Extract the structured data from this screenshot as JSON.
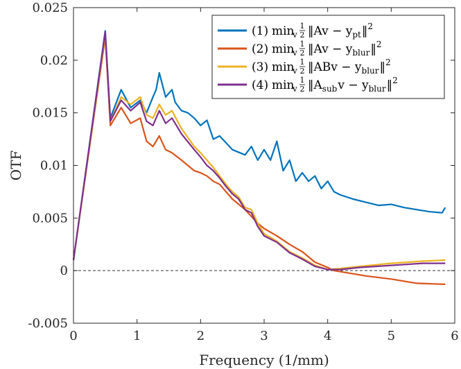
{
  "chart_data": {
    "type": "line",
    "xlabel": "Frequency (1/mm)",
    "ylabel": "OTF",
    "xlim": [
      0,
      6
    ],
    "ylim": [
      -0.005,
      0.025
    ],
    "x_ticks": [
      0,
      1,
      2,
      3,
      4,
      5,
      6
    ],
    "y_ticks": [
      -0.005,
      0,
      0.005,
      0.01,
      0.015,
      0.02,
      0.025
    ],
    "x_tick_labels": [
      "0",
      "1",
      "2",
      "3",
      "4",
      "5",
      "6"
    ],
    "y_tick_labels": [
      "-0.005",
      "0",
      "0.005",
      "0.01",
      "0.015",
      "0.02",
      "0.025"
    ],
    "reference_line": {
      "y": 0,
      "style": "dashed"
    },
    "grid": false,
    "legend_position": "top-right",
    "legend": [
      {
        "number": "(1)",
        "min": "min",
        "min_sub": "v",
        "half_num": "1",
        "half_den": "2",
        "norm_open": "‖Av − y",
        "y_sub": "pt",
        "norm_close": "‖",
        "power": "2"
      },
      {
        "number": "(2)",
        "min": "min",
        "min_sub": "v",
        "half_num": "1",
        "half_den": "2",
        "norm_open": "‖Av − y",
        "y_sub": "blur",
        "norm_close": "‖",
        "power": "2"
      },
      {
        "number": "(3)",
        "min": "min",
        "min_sub": "v",
        "half_num": "1",
        "half_den": "2",
        "norm_open": "‖ABv − y",
        "y_sub": "blur",
        "norm_close": "‖",
        "power": "2"
      },
      {
        "number": "(4)",
        "min": "min",
        "min_sub": "v",
        "half_num": "1",
        "half_den": "2",
        "norm_open": "‖A",
        "a_sub": "sub",
        "norm_mid": "v − y",
        "y_sub": "blur",
        "norm_close": "‖",
        "power": "2"
      }
    ],
    "series": [
      {
        "color": "#0072bd",
        "x": [
          0,
          0.5,
          0.58,
          0.75,
          0.9,
          1.05,
          1.15,
          1.25,
          1.3,
          1.35,
          1.45,
          1.55,
          1.6,
          1.7,
          1.8,
          1.9,
          2.0,
          2.1,
          2.2,
          2.3,
          2.5,
          2.7,
          2.8,
          2.9,
          3.0,
          3.1,
          3.2,
          3.3,
          3.4,
          3.5,
          3.6,
          3.7,
          3.8,
          3.9,
          4.0,
          4.1,
          4.2,
          4.4,
          4.6,
          4.8,
          5.0,
          5.2,
          5.4,
          5.6,
          5.8,
          5.85
        ],
        "y": [
          0.001,
          0.0228,
          0.0145,
          0.0172,
          0.0155,
          0.0162,
          0.015,
          0.0165,
          0.0172,
          0.0188,
          0.0165,
          0.0172,
          0.016,
          0.0152,
          0.015,
          0.0145,
          0.0138,
          0.0143,
          0.0125,
          0.0128,
          0.0115,
          0.011,
          0.0118,
          0.0105,
          0.0115,
          0.0105,
          0.0123,
          0.0095,
          0.0105,
          0.0085,
          0.0093,
          0.0085,
          0.009,
          0.0078,
          0.0085,
          0.0075,
          0.0072,
          0.0068,
          0.0065,
          0.0062,
          0.0063,
          0.006,
          0.0058,
          0.0056,
          0.0055,
          0.006
        ]
      },
      {
        "color": "#d95319",
        "x": [
          0,
          0.5,
          0.58,
          0.75,
          0.9,
          1.05,
          1.15,
          1.25,
          1.35,
          1.45,
          1.55,
          1.7,
          1.9,
          2.0,
          2.1,
          2.2,
          2.3,
          2.5,
          2.7,
          2.9,
          3.0,
          3.2,
          3.4,
          3.6,
          3.8,
          4.0,
          4.1,
          4.3,
          4.6,
          5.0,
          5.4,
          5.85
        ],
        "y": [
          0.001,
          0.0222,
          0.0138,
          0.0155,
          0.014,
          0.0145,
          0.0123,
          0.0118,
          0.0128,
          0.0115,
          0.0112,
          0.0105,
          0.0095,
          0.0093,
          0.009,
          0.0085,
          0.0082,
          0.0068,
          0.0058,
          0.0045,
          0.004,
          0.0033,
          0.0025,
          0.0018,
          0.0008,
          0.0003,
          0.0,
          -0.0002,
          -0.0005,
          -0.0008,
          -0.0012,
          -0.0013
        ]
      },
      {
        "color": "#edb120",
        "x": [
          0,
          0.5,
          0.58,
          0.75,
          0.9,
          1.05,
          1.15,
          1.25,
          1.35,
          1.45,
          1.55,
          1.7,
          1.9,
          2.0,
          2.1,
          2.2,
          2.3,
          2.4,
          2.5,
          2.6,
          2.7,
          2.8,
          2.9,
          3.0,
          3.2,
          3.4,
          3.6,
          3.8,
          4.0,
          4.2,
          4.5,
          5.0,
          5.5,
          5.85
        ],
        "y": [
          0.001,
          0.0225,
          0.0142,
          0.0165,
          0.0158,
          0.0165,
          0.0148,
          0.0145,
          0.0158,
          0.0148,
          0.0152,
          0.0135,
          0.0118,
          0.0112,
          0.0105,
          0.0098,
          0.009,
          0.0082,
          0.0075,
          0.007,
          0.006,
          0.0058,
          0.0045,
          0.0035,
          0.0028,
          0.0018,
          0.0012,
          0.0005,
          0.0001,
          0.0002,
          0.0004,
          0.0007,
          0.0009,
          0.001
        ]
      },
      {
        "color": "#7e2f8e",
        "x": [
          0,
          0.5,
          0.58,
          0.75,
          0.9,
          1.05,
          1.15,
          1.25,
          1.35,
          1.45,
          1.55,
          1.7,
          1.9,
          2.0,
          2.1,
          2.2,
          2.3,
          2.4,
          2.5,
          2.6,
          2.7,
          2.8,
          2.9,
          3.0,
          3.2,
          3.4,
          3.6,
          3.8,
          4.0,
          4.2,
          4.5,
          5.0,
          5.5,
          5.85
        ],
        "y": [
          0.001,
          0.0227,
          0.0142,
          0.0162,
          0.0152,
          0.016,
          0.0142,
          0.0138,
          0.0152,
          0.014,
          0.0145,
          0.013,
          0.0115,
          0.0108,
          0.01,
          0.0095,
          0.0088,
          0.008,
          0.0073,
          0.0068,
          0.0058,
          0.0055,
          0.0042,
          0.0033,
          0.0027,
          0.0017,
          0.0011,
          0.0004,
          0.0001,
          0.0001,
          0.0003,
          0.0005,
          0.0007,
          0.0007
        ]
      }
    ]
  }
}
